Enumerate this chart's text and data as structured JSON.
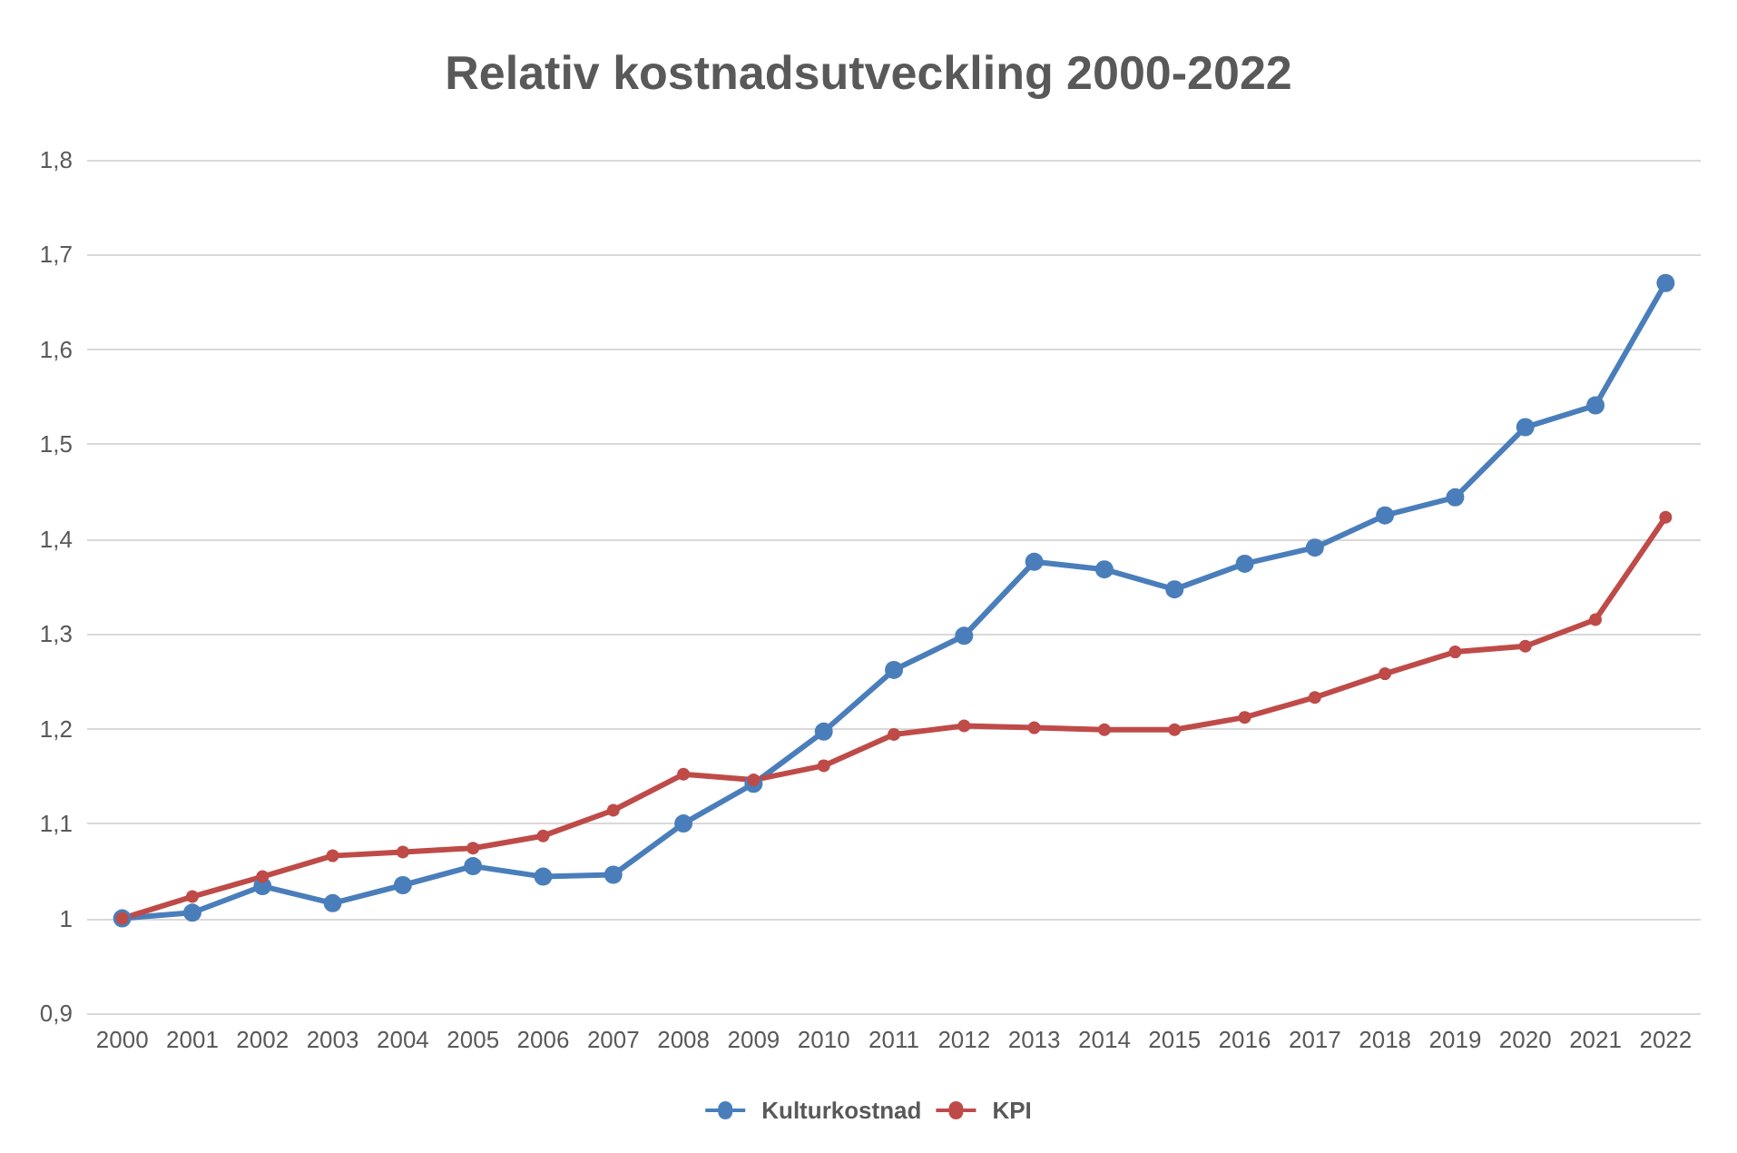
{
  "chart_data": {
    "type": "line",
    "title": "Relativ kostnadsutveckling 2000-2022",
    "categories": [
      "2000",
      "2001",
      "2002",
      "2003",
      "2004",
      "2005",
      "2006",
      "2007",
      "2008",
      "2009",
      "2010",
      "2011",
      "2012",
      "2013",
      "2014",
      "2015",
      "2016",
      "2017",
      "2018",
      "2019",
      "2020",
      "2021",
      "2022"
    ],
    "series": [
      {
        "name": "Kulturkostnad",
        "color": "#4a7ebb",
        "values": [
          1.0,
          1.006,
          1.034,
          1.016,
          1.035,
          1.055,
          1.044,
          1.046,
          1.1,
          1.142,
          1.197,
          1.262,
          1.298,
          1.376,
          1.368,
          1.347,
          1.374,
          1.391,
          1.425,
          1.444,
          1.518,
          1.541,
          1.67
        ]
      },
      {
        "name": "KPI",
        "color": "#be4b48",
        "values": [
          1.0,
          1.023,
          1.044,
          1.066,
          1.07,
          1.074,
          1.087,
          1.114,
          1.152,
          1.146,
          1.161,
          1.194,
          1.203,
          1.201,
          1.199,
          1.199,
          1.212,
          1.233,
          1.258,
          1.281,
          1.287,
          1.315,
          1.423
        ]
      }
    ],
    "ylim": [
      0.9,
      1.8
    ],
    "yticks": [
      {
        "value": 0.9,
        "label": "0,9"
      },
      {
        "value": 1,
        "label": "1"
      },
      {
        "value": 1.1,
        "label": "1,1"
      },
      {
        "value": 1.2,
        "label": "1,2"
      },
      {
        "value": 1.3,
        "label": "1,3"
      },
      {
        "value": 1.4,
        "label": "1,4"
      },
      {
        "value": 1.5,
        "label": "1,5"
      },
      {
        "value": 1.6,
        "label": "1,6"
      },
      {
        "value": 1.7,
        "label": "1,7"
      },
      {
        "value": 1.8,
        "label": "1,8"
      }
    ],
    "grid": "y",
    "legend": "bottom",
    "marker": "circle",
    "line_style": "solid"
  }
}
